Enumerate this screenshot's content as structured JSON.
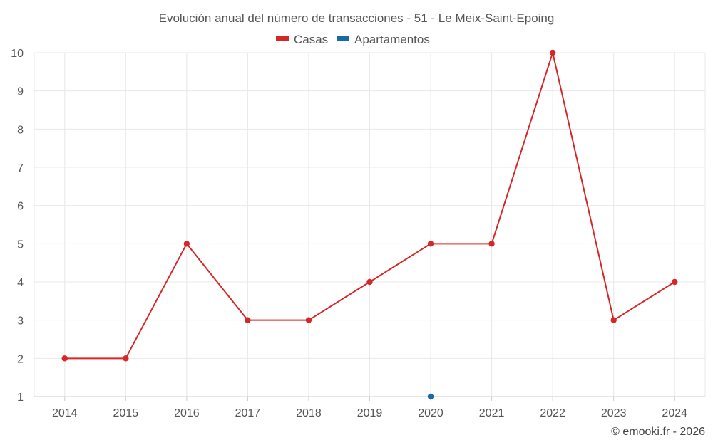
{
  "chart_data": {
    "type": "line",
    "title": "Evolución anual del número de transacciones - 51 - Le Meix-Saint-Epoing",
    "x": [
      2014,
      2015,
      2016,
      2017,
      2018,
      2019,
      2020,
      2021,
      2022,
      2023,
      2024
    ],
    "xticks": [
      "2014",
      "2015",
      "2016",
      "2017",
      "2018",
      "2019",
      "2020",
      "2021",
      "2022",
      "2023",
      "2024"
    ],
    "yticks": [
      "1",
      "2",
      "3",
      "4",
      "5",
      "6",
      "7",
      "8",
      "9",
      "10"
    ],
    "ylim": [
      1,
      10
    ],
    "grid": true,
    "legend_position": "top-center",
    "series": [
      {
        "name": "Casas",
        "color": "#d62728",
        "values": [
          2,
          2,
          5,
          3,
          3,
          4,
          5,
          5,
          10,
          3,
          4
        ]
      },
      {
        "name": "Apartamentos",
        "color": "#1a6aa2",
        "values": [
          null,
          null,
          null,
          null,
          null,
          null,
          1,
          null,
          null,
          null,
          null
        ]
      }
    ],
    "xlabel": "",
    "ylabel": ""
  },
  "credit": "© emooki.fr - 2026"
}
